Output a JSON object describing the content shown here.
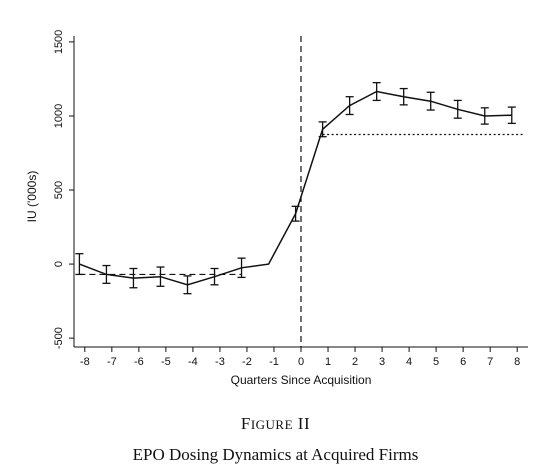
{
  "figure_label": {
    "first_letter": "F",
    "rest": "IGURE",
    "number": " II"
  },
  "figure_title": "EPO Dosing Dynamics at Acquired Firms",
  "chart_data": {
    "type": "line",
    "xlabel": "Quarters Since Acquisition",
    "ylabel": "IU ('000s)",
    "xlim": [
      -8.4,
      8.4
    ],
    "ylim": [
      -560,
      1540
    ],
    "x_ticks": [
      -8,
      -7,
      -6,
      -5,
      -4,
      -3,
      -2,
      -1,
      0,
      1,
      2,
      3,
      4,
      5,
      6,
      7,
      8
    ],
    "x_tick_labels": [
      "-8",
      "-7",
      "-6",
      "-5",
      "-4",
      "-3",
      "-2",
      "-1",
      "0",
      "1",
      "2",
      "3",
      "4",
      "5",
      "6",
      "7",
      "8"
    ],
    "y_ticks": [
      -500,
      0,
      500,
      1000,
      1500
    ],
    "y_tick_labels": [
      "-500",
      "0",
      "500",
      "1000",
      "1500"
    ],
    "grid": false,
    "series": [
      {
        "x": [
          -8.2,
          -7.2,
          -6.2,
          -5.2,
          -4.2,
          -3.2,
          -2.2,
          -1.2,
          -0.2,
          0.8,
          1.8,
          2.8,
          3.8,
          4.8,
          5.8,
          6.8,
          7.8
        ],
        "y": [
          0,
          -70,
          -95,
          -85,
          -140,
          -85,
          -25,
          0,
          340,
          910,
          1070,
          1165,
          1130,
          1100,
          1045,
          1000,
          1005
        ],
        "ci_low": [
          -70,
          -130,
          -160,
          -150,
          -200,
          -140,
          -90,
          null,
          290,
          860,
          1010,
          1105,
          1075,
          1040,
          985,
          945,
          950
        ],
        "ci_high": [
          70,
          -10,
          -30,
          -20,
          -80,
          -30,
          40,
          null,
          390,
          960,
          1130,
          1225,
          1185,
          1160,
          1105,
          1055,
          1060
        ]
      }
    ],
    "reference_lines": {
      "vertical_x": 0,
      "pre_mean": {
        "x_from": -8.2,
        "x_to": -2.2,
        "y": -70
      },
      "post_mean": {
        "x_from": 0.8,
        "x_to": 8.2,
        "y": 875
      }
    }
  }
}
